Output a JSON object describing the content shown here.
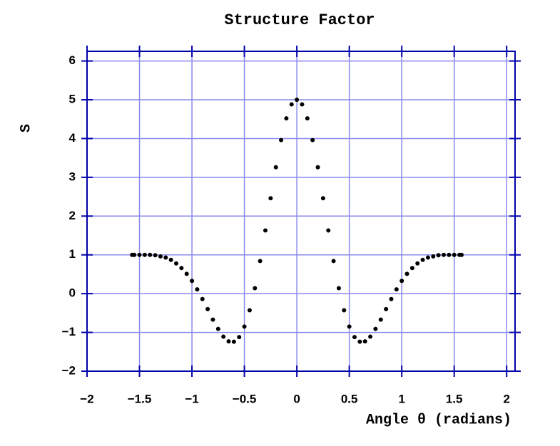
{
  "chart_data": {
    "type": "scatter",
    "title": "Structure Factor",
    "x_label": "Angle θ (radians)",
    "y_label": "S",
    "color": "#000000",
    "grid": true,
    "grid_color": "#8888ee",
    "frame_color": "#0000aa",
    "xlim": [
      -2,
      2.08
    ],
    "ylim": [
      -2,
      6.25
    ],
    "xticks": [
      {
        "value": -2,
        "label": "−2"
      },
      {
        "value": -1.5,
        "label": "−1.5"
      },
      {
        "value": -1,
        "label": "−1"
      },
      {
        "value": -0.5,
        "label": "−0.5"
      },
      0,
      0.5,
      1,
      1.5,
      2
    ],
    "yticks": [
      {
        "value": -2,
        "label": "−2"
      },
      {
        "value": -1,
        "label": "−1"
      },
      0,
      1,
      2,
      3,
      4,
      5,
      6
    ],
    "x": [
      -1.57,
      -1.55,
      -1.5,
      -1.45,
      -1.4,
      -1.35,
      -1.3,
      -1.25,
      -1.2,
      -1.15,
      -1.1,
      -1.05,
      -1,
      -0.95,
      -0.9,
      -0.85,
      -0.8,
      -0.75,
      -0.7,
      -0.65,
      -0.6,
      -0.55,
      -0.5,
      -0.45,
      -0.4,
      -0.35,
      -0.3,
      -0.25,
      -0.2,
      -0.15,
      -0.1,
      -0.05,
      0,
      0.05,
      0.1,
      0.15,
      0.2,
      0.25,
      0.3,
      0.35,
      0.4,
      0.45,
      0.5,
      0.55,
      0.6,
      0.65,
      0.7,
      0.75,
      0.8,
      0.85,
      0.9,
      0.95,
      1,
      1.05,
      1.1,
      1.15,
      1.2,
      1.25,
      1.3,
      1.35,
      1.4,
      1.45,
      1.5,
      1.55,
      1.57
    ],
    "values": [
      1,
      1,
      1,
      1,
      1,
      0.99,
      0.96,
      0.93,
      0.87,
      0.78,
      0.66,
      0.51,
      0.33,
      0.11,
      -0.14,
      -0.4,
      -0.67,
      -0.91,
      -1.11,
      -1.23,
      -1.24,
      -1.12,
      -0.85,
      -0.43,
      0.14,
      0.84,
      1.63,
      2.46,
      3.26,
      3.96,
      4.52,
      4.88,
      5,
      4.88,
      4.52,
      3.96,
      3.26,
      2.46,
      1.63,
      0.84,
      0.14,
      -0.43,
      -0.85,
      -1.12,
      -1.24,
      -1.23,
      -1.11,
      -0.91,
      -0.67,
      -0.4,
      -0.14,
      0.11,
      0.33,
      0.51,
      0.66,
      0.78,
      0.87,
      0.93,
      0.96,
      0.99,
      1,
      1,
      1,
      1,
      1
    ]
  }
}
